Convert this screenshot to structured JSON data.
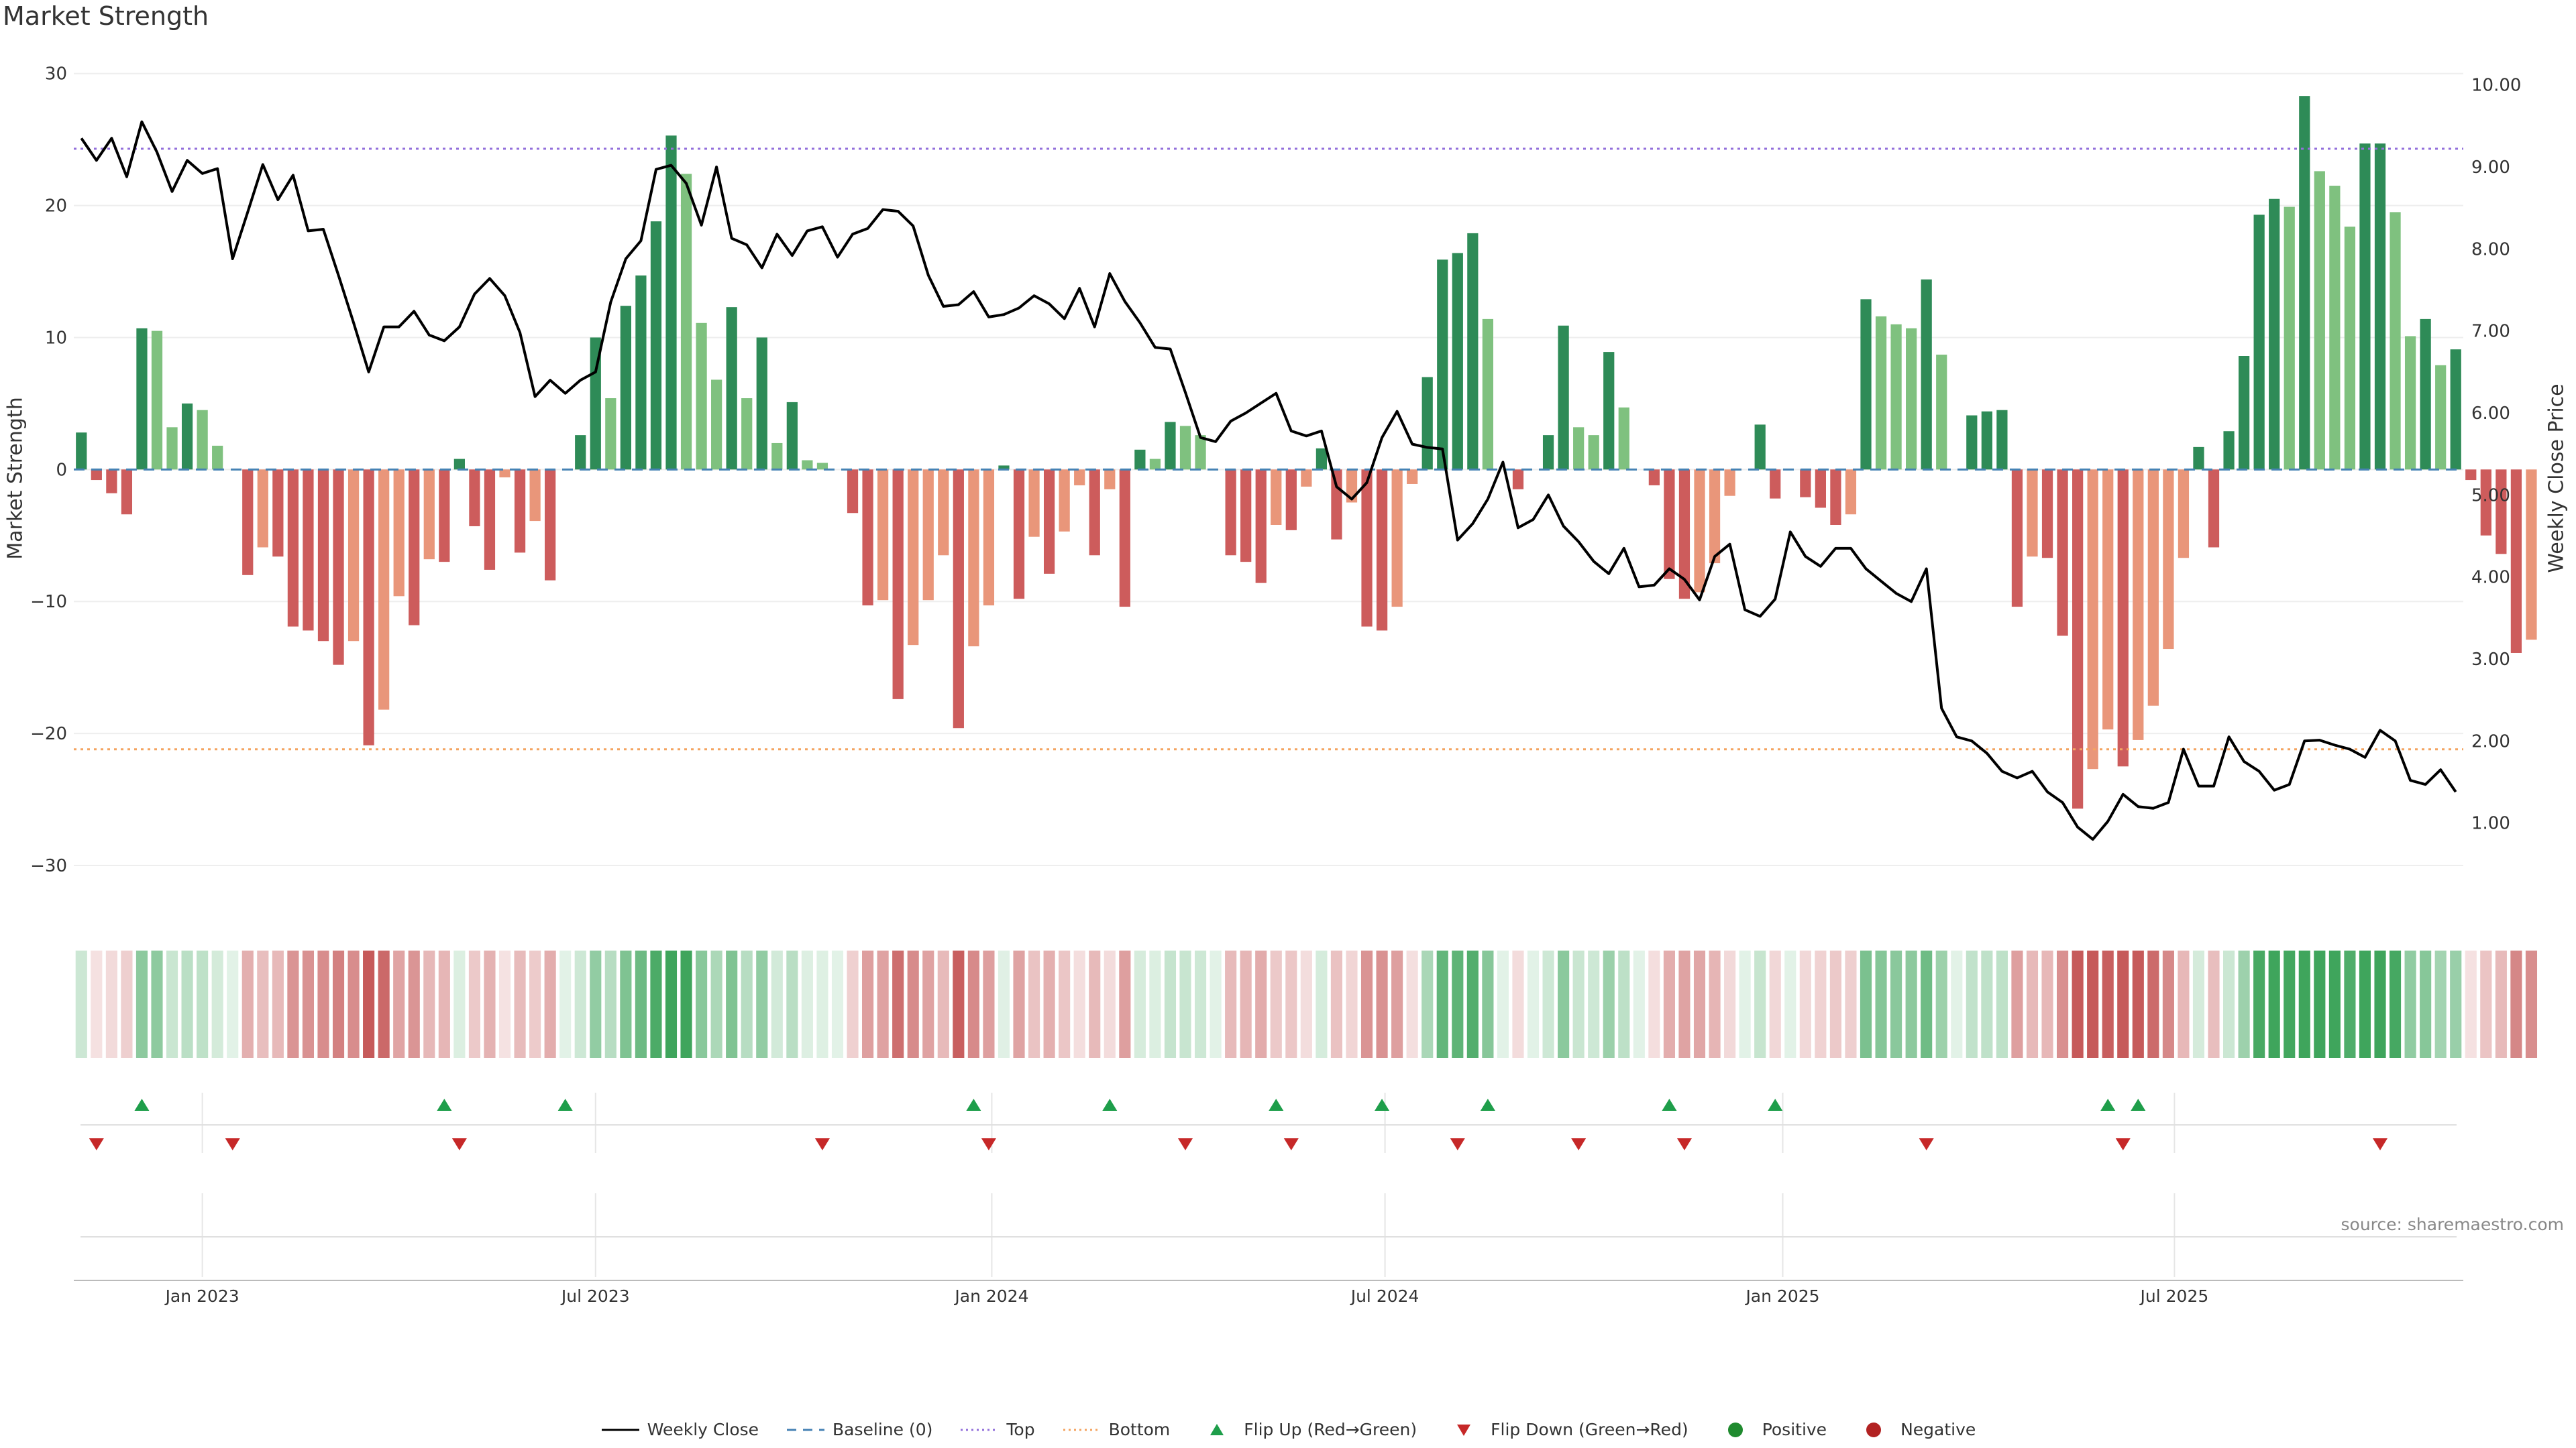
{
  "title": "Market Strength",
  "source": "source: sharemaestro.com",
  "colors": {
    "strong_green": "#2e8b57",
    "light_green": "#7fc17f",
    "strong_red": "#cd5c5c",
    "light_red": "#e9967a",
    "close_line": "#000000",
    "top_line": "#9370db",
    "bottom_line": "#f4a460",
    "baseline": "#4682b4",
    "flip_up": "#1e9e4a",
    "flip_down": "#c62828"
  },
  "legend": [
    {
      "label": "Weekly Close",
      "icon": "line-icon"
    },
    {
      "label": "Baseline (0)",
      "icon": "dash-line-icon"
    },
    {
      "label": "Top",
      "icon": "dotted-line-icon"
    },
    {
      "label": "Bottom",
      "icon": "dotted-line-icon"
    },
    {
      "label": "Flip Up (Red→Green)",
      "icon": "triangle-up-icon"
    },
    {
      "label": "Flip Down (Green→Red)",
      "icon": "triangle-down-icon"
    },
    {
      "label": "Positive",
      "icon": "circle-icon"
    },
    {
      "label": "Negative",
      "icon": "circle-icon"
    }
  ],
  "chart_data": {
    "type": "bar",
    "ylabel": "Market Strength",
    "y2label": "Weekly Close Price",
    "ylim": [
      -33,
      31
    ],
    "y2lim": [
      0.0,
      10.3
    ],
    "yticks": [
      30,
      20,
      10,
      0,
      -10,
      -20,
      -30
    ],
    "y2ticks": [
      "10.00",
      "9.00",
      "8.00",
      "7.00",
      "6.00",
      "5.00",
      "4.00",
      "3.00",
      "2.00",
      "1.00"
    ],
    "x_labels": [
      {
        "label": "Jan 2023",
        "week": 8.5
      },
      {
        "label": "Jul 2023",
        "week": 34.5
      },
      {
        "label": "Jan 2024",
        "week": 60.7
      },
      {
        "label": "Jul 2024",
        "week": 86.7
      },
      {
        "label": "Jan 2025",
        "week": 113.0
      },
      {
        "label": "Jul 2025",
        "week": 138.9
      }
    ],
    "top_level": 24.3,
    "bottom_level": -21.2,
    "weeks": 158,
    "strength": [
      2.8,
      -0.8,
      -1.8,
      -3.4,
      10.7,
      10.5,
      3.2,
      5.0,
      4.5,
      1.8,
      0,
      -8.0,
      -5.9,
      -6.6,
      -11.9,
      -12.2,
      -13.0,
      -14.8,
      -13.0,
      -20.9,
      -18.2,
      -9.6,
      -11.8,
      -6.8,
      -7.0,
      0.8,
      -4.3,
      -7.6,
      -0.6,
      -6.3,
      -3.9,
      -8.4,
      0,
      2.6,
      10.0,
      5.4,
      12.4,
      14.7,
      18.8,
      25.3,
      22.4,
      11.1,
      6.8,
      12.3,
      5.4,
      10.0,
      2.0,
      5.1,
      0.7,
      0.5,
      0,
      -3.3,
      -10.3,
      -9.9,
      -17.4,
      -13.3,
      -9.9,
      -6.5,
      -19.6,
      -13.4,
      -10.3,
      0.3,
      -9.8,
      -5.1,
      -7.9,
      -4.7,
      -1.2,
      -6.5,
      -1.5,
      -10.4,
      1.5,
      0.8,
      3.6,
      3.3,
      2.6,
      0,
      -6.5,
      -7.0,
      -8.6,
      -4.2,
      -4.6,
      -1.3,
      1.6,
      -5.3,
      -2.5,
      -11.9,
      -12.2,
      -10.4,
      -1.1,
      7.0,
      15.9,
      16.4,
      17.9,
      11.4,
      0,
      -1.5,
      0,
      2.6,
      10.9,
      3.2,
      2.6,
      8.9,
      4.7,
      0,
      -1.2,
      -8.3,
      -9.8,
      -9.3,
      -7.1,
      -2.0,
      0,
      3.4,
      -2.2,
      0,
      -2.1,
      -2.9,
      -4.2,
      -3.4,
      12.9,
      11.6,
      11.0,
      10.7,
      14.4,
      8.7,
      0,
      4.1,
      4.4,
      4.5,
      -10.4,
      -6.6,
      -6.7,
      -12.6,
      -25.7,
      -22.7,
      -19.7,
      -22.5,
      -20.5,
      -17.9,
      -13.6,
      -6.7,
      1.7,
      -5.9,
      2.9,
      8.6,
      19.3,
      20.5,
      19.9,
      28.3,
      22.6,
      21.5,
      18.4,
      24.7,
      24.7,
      19.5,
      10.1,
      11.4,
      7.9,
      9.1,
      -0.8,
      -5.0,
      -6.4,
      -13.9,
      -12.9
    ],
    "close": [
      9.35,
      9.08,
      9.35,
      8.88,
      9.55,
      9.18,
      8.7,
      9.08,
      8.92,
      8.98,
      7.88,
      8.45,
      9.03,
      8.6,
      8.9,
      8.22,
      8.24,
      7.68,
      7.1,
      6.5,
      7.05,
      7.05,
      7.24,
      6.95,
      6.88,
      7.05,
      7.45,
      7.64,
      7.43,
      6.98,
      6.2,
      6.4,
      6.24,
      6.4,
      6.5,
      7.35,
      7.88,
      8.1,
      8.97,
      9.02,
      8.8,
      8.29,
      9.0,
      8.13,
      8.05,
      7.77,
      8.18,
      7.92,
      8.22,
      8.27,
      7.9,
      8.18,
      8.25,
      8.48,
      8.46,
      8.28,
      7.68,
      7.3,
      7.32,
      7.48,
      7.17,
      7.2,
      7.28,
      7.43,
      7.33,
      7.15,
      7.52,
      7.05,
      7.7,
      7.36,
      7.1,
      6.8,
      6.78,
      6.25,
      5.7,
      5.65,
      5.9,
      6.0,
      6.12,
      6.24,
      5.78,
      5.72,
      5.78,
      5.1,
      4.95,
      5.15,
      5.7,
      6.02,
      5.62,
      5.58,
      5.56,
      4.45,
      4.65,
      4.95,
      5.4,
      4.6,
      4.7,
      5.0,
      4.62,
      4.43,
      4.19,
      4.04,
      4.35,
      3.88,
      3.9,
      4.1,
      3.97,
      3.72,
      4.25,
      4.4,
      3.6,
      3.52,
      3.73,
      4.55,
      4.25,
      4.13,
      4.35,
      4.35,
      4.1,
      3.95,
      3.8,
      3.7,
      4.1,
      2.4,
      2.05,
      2.0,
      1.85,
      1.63,
      1.55,
      1.63,
      1.38,
      1.25,
      0.95,
      0.8,
      1.02,
      1.35,
      1.2,
      1.18,
      1.25,
      1.9,
      1.45,
      1.45,
      2.05,
      1.75,
      1.63,
      1.4,
      1.47,
      2.0,
      2.01,
      1.95,
      1.9,
      1.8,
      2.13,
      2.0,
      1.52,
      1.47,
      1.65,
      1.38
    ],
    "flip_up_weeks": [
      4,
      24,
      32,
      59,
      68,
      79,
      86,
      93,
      105,
      112,
      134,
      136
    ],
    "flip_down_weeks": [
      1,
      10,
      25,
      49,
      60,
      73,
      80,
      91,
      99,
      106,
      122,
      135,
      152
    ]
  }
}
